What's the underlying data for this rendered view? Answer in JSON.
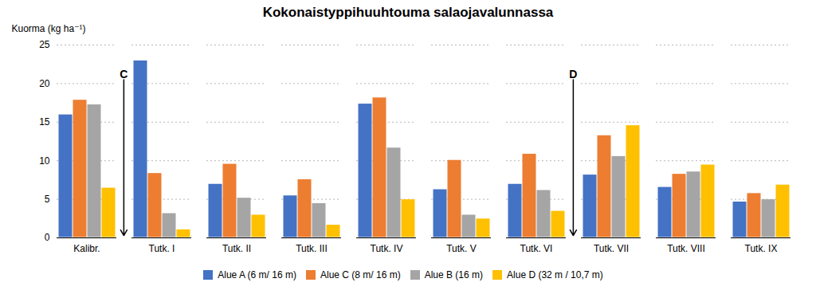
{
  "chart_data": {
    "type": "bar",
    "title": "Kokonaistyppihuuhtouma salaojavalunnassa",
    "ylabel": "Kuorma (kg ha⁻¹)",
    "categories": [
      "Kalibr.",
      "Tutk. I",
      "Tutk. II",
      "Tutk. III",
      "Tutk. IV",
      "Tutk. V",
      "Tutk. VI",
      "Tutk. VII",
      "Tutk. VIII",
      "Tutk. IX"
    ],
    "series": [
      {
        "name": "Alue A (6 m/ 16 m)",
        "color": "#4472C4",
        "values": [
          16.0,
          23.0,
          7.0,
          5.5,
          17.4,
          6.3,
          7.0,
          8.2,
          6.6,
          4.7
        ]
      },
      {
        "name": "Alue C (8 m/ 16 m)",
        "color": "#ED7D31",
        "values": [
          17.9,
          8.4,
          9.6,
          7.6,
          18.2,
          10.1,
          10.9,
          13.3,
          8.3,
          5.8
        ]
      },
      {
        "name": "Alue B (16 m)",
        "color": "#A5A5A5",
        "values": [
          17.3,
          3.2,
          5.2,
          4.5,
          11.7,
          3.0,
          6.2,
          10.6,
          8.6,
          5.0
        ]
      },
      {
        "name": "Alue D (32 m / 10,7 m)",
        "color": "#FFC000",
        "values": [
          6.5,
          1.1,
          3.0,
          1.7,
          5.0,
          2.5,
          3.5,
          14.6,
          9.5,
          6.9
        ]
      }
    ],
    "ylim": [
      0,
      25
    ],
    "yticks": [
      0,
      5,
      10,
      15,
      20,
      25
    ],
    "grid": true,
    "legend": "bottom",
    "annotations": [
      {
        "text": "C",
        "after": "Kalibr.",
        "y": 20.5,
        "to": 0.3
      },
      {
        "text": "D",
        "after": "Tutk. VI",
        "y": 20.5,
        "to": 0.3
      }
    ]
  }
}
